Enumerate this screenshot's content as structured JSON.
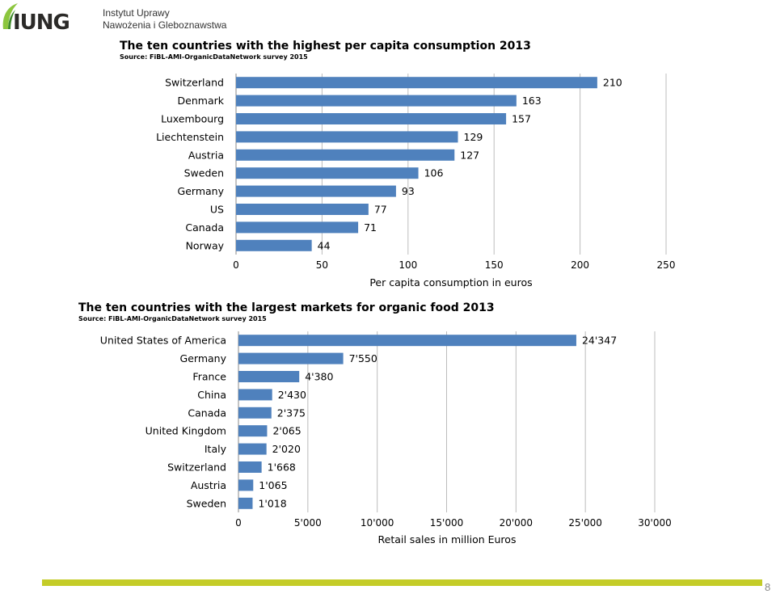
{
  "header": {
    "institute_line1": "Instytut Uprawy",
    "institute_line2": "Nawożenia i Gleboznawstwa",
    "logo_text": "IUNG",
    "brand_colors": {
      "logo_text": "#2b2a28",
      "logo_leaf": "#8cc63e",
      "logo_leaf_dark": "#3f8a2b"
    }
  },
  "chart_data": [
    {
      "type": "bar",
      "orientation": "horizontal",
      "title": "The ten countries with the highest per capita consumption 2013",
      "subtitle": "Source: FiBL-AMI-OrganicDataNetwork survey 2015",
      "xlabel": "Per capita consumption in euros",
      "ylabel": "",
      "categories": [
        "Switzerland",
        "Denmark",
        "Luxembourg",
        "Liechtenstein",
        "Austria",
        "Sweden",
        "Germany",
        "US",
        "Canada",
        "Norway"
      ],
      "values": [
        210,
        163,
        157,
        129,
        127,
        106,
        93,
        77,
        71,
        44
      ],
      "value_labels": [
        "210",
        "163",
        "157",
        "129",
        "127",
        "106",
        "93",
        "77",
        "71",
        "44"
      ],
      "xlim": [
        0,
        250
      ],
      "xticks": [
        0,
        50,
        100,
        150,
        200,
        250
      ],
      "xtick_labels": [
        "0",
        "50",
        "100",
        "150",
        "200",
        "250"
      ],
      "grid": true,
      "bar_color": "#4f81bd"
    },
    {
      "type": "bar",
      "orientation": "horizontal",
      "title": "The ten countries with the largest markets for organic food  2013",
      "subtitle": "Source: FiBL-AMI-OrganicDataNetwork survey 2015",
      "xlabel": "Retail sales in million Euros",
      "ylabel": "",
      "categories": [
        "United States of America",
        "Germany",
        "France",
        "China",
        "Canada",
        "United Kingdom",
        "Italy",
        "Switzerland",
        "Austria",
        "Sweden"
      ],
      "values": [
        24347,
        7550,
        4380,
        2430,
        2375,
        2065,
        2020,
        1668,
        1065,
        1018
      ],
      "value_labels": [
        "24'347",
        "7'550",
        "4'380",
        "2'430",
        "2'375",
        "2'065",
        "2'020",
        "1'668",
        "1'065",
        "1'018"
      ],
      "xlim": [
        0,
        30000
      ],
      "xticks": [
        0,
        5000,
        10000,
        15000,
        20000,
        25000,
        30000
      ],
      "xtick_labels": [
        "0",
        "5'000",
        "10'000",
        "15'000",
        "20'000",
        "25'000",
        "30'000"
      ],
      "grid": true,
      "bar_color": "#4f81bd"
    }
  ],
  "footer": {
    "page_number": "8",
    "bar_color": "#c4cc28"
  }
}
